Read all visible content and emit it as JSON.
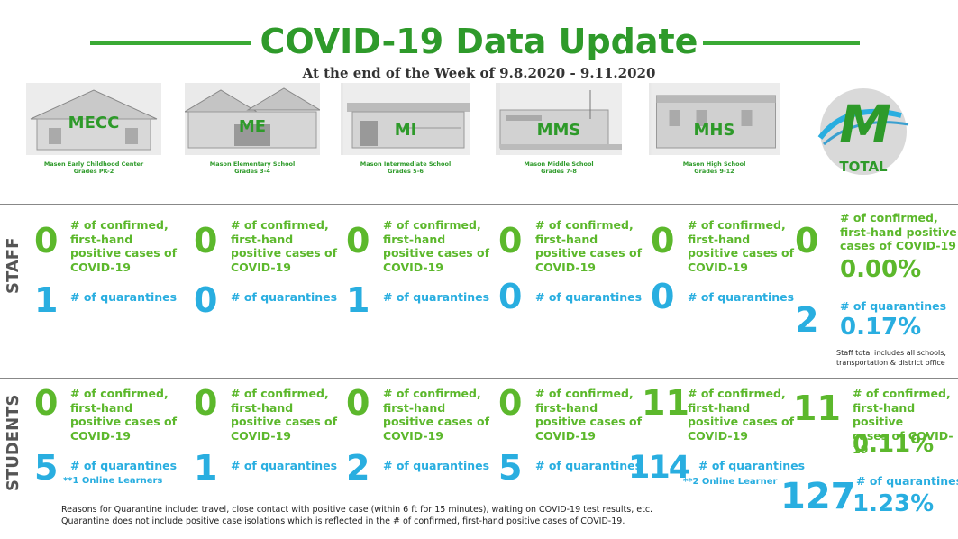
{
  "header": {
    "title": "COVID-19 Data Update",
    "subtitle": "At the end of the Week of 9.8.2020 - 9.11.2020"
  },
  "colors": {
    "green": "#5cb82c",
    "blue": "#29aee0",
    "title_green": "#2e9a2a"
  },
  "schools": [
    {
      "abbr": "MECC",
      "name": "Mason Early Childhood Center",
      "grades": "Grades PK-2"
    },
    {
      "abbr": "ME",
      "name": "Mason Elementary School",
      "grades": "Grades 3-4"
    },
    {
      "abbr": "MI",
      "name": "Mason Intermediate  School",
      "grades": "Grades 5-6"
    },
    {
      "abbr": "MMS",
      "name": "Mason Middle School",
      "grades": "Grades 7-8"
    },
    {
      "abbr": "MHS",
      "name": "Mason High School",
      "grades": "Grades 9-12"
    }
  ],
  "total_label": "TOTAL",
  "logo_letter": "M",
  "sections": {
    "staff": "STAFF",
    "students": "STUDENTS"
  },
  "labels": {
    "confirmed": "# of confirmed,\nfirst-hand\npositive cases of\nCOVID-19",
    "confirmed_total": "# of confirmed,\nfirst-hand positive\ncases of COVID-19",
    "quarantines": "# of quarantines"
  },
  "staff": {
    "confirmed": [
      "0",
      "0",
      "0",
      "0",
      "0"
    ],
    "quarantines": [
      "1",
      "0",
      "1",
      "0",
      "0"
    ],
    "total_confirmed": "0",
    "total_confirmed_pct": "0.00%",
    "total_quarantines": "2",
    "total_quarantines_pct": "0.17%",
    "note": "Staff total includes all schools,\ntransportation & district office"
  },
  "students": {
    "confirmed": [
      "0",
      "0",
      "0",
      "0",
      "11"
    ],
    "quarantines": [
      "5",
      "1",
      "2",
      "5",
      "114"
    ],
    "total_confirmed": "11",
    "total_confirmed_pct": "0.11%",
    "total_quarantines": "127",
    "total_quarantines_pct": "1.23%",
    "online_notes": {
      "mecc": "**1 Online Learners",
      "mhs": "**2 Online Learner"
    }
  },
  "footer": "Reasons for Quarantine include: travel, close contact with positive case (within 6 ft for 15 minutes), waiting on COVID-19 test results, etc.\nQuarantine does not include positive case isolations which is reflected in the # of confirmed, first-hand positive cases of COVID-19."
}
